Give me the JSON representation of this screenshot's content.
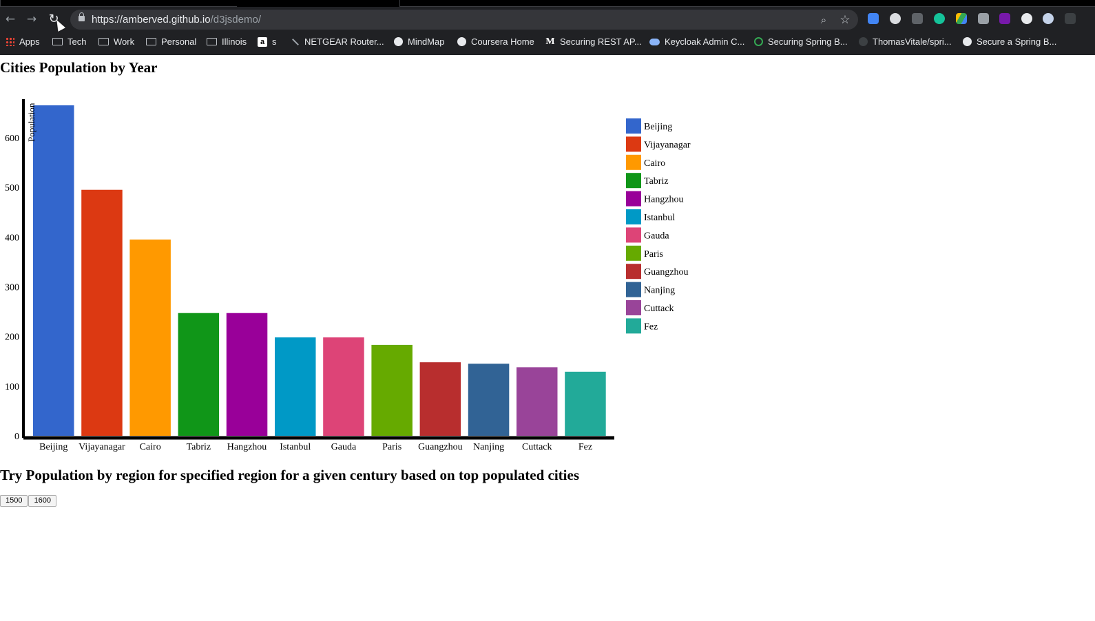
{
  "browser": {
    "url_host": "https://amberved.github.io",
    "url_path": "/d3jsdemo/",
    "bookmarks": [
      {
        "label": "Apps",
        "icon": "apps-grid-icon"
      },
      {
        "label": "Tech",
        "icon": "folder-icon"
      },
      {
        "label": "Work",
        "icon": "folder-icon"
      },
      {
        "label": "Personal",
        "icon": "folder-icon"
      },
      {
        "label": "Illinois",
        "icon": "folder-icon"
      },
      {
        "label": "s",
        "icon": "amazon-icon"
      },
      {
        "label": "NETGEAR Router...",
        "icon": "netgear-icon"
      },
      {
        "label": "MindMap",
        "icon": "globe-icon"
      },
      {
        "label": "Coursera Home",
        "icon": "globe-icon"
      },
      {
        "label": "Securing REST AP...",
        "icon": "medium-icon"
      },
      {
        "label": "Keycloak Admin C...",
        "icon": "cloud-icon"
      },
      {
        "label": "Securing Spring B...",
        "icon": "spring-icon"
      },
      {
        "label": "ThomasVitale/spri...",
        "icon": "github-icon"
      },
      {
        "label": "Secure a Spring B...",
        "icon": "globe-icon"
      }
    ]
  },
  "page": {
    "title": "Cities Population by Year",
    "section_title": "Try Population by region for specified region for a given century based on top populated cities",
    "year_buttons": [
      "1500",
      "1600"
    ]
  },
  "chart_data": {
    "type": "bar",
    "title": "Cities Population by Year",
    "xlabel": "",
    "ylabel": "Population",
    "ylim": [
      0,
      665
    ],
    "yticks": [
      0,
      100,
      200,
      300,
      400,
      500,
      600
    ],
    "categories": [
      "Beijing",
      "Vijayanagar",
      "Cairo",
      "Tabriz",
      "Hangzhou",
      "Istanbul",
      "Gauda",
      "Paris",
      "Guangzhou",
      "Nanjing",
      "Cuttack",
      "Fez"
    ],
    "values": [
      665,
      495,
      395,
      247,
      247,
      198,
      198,
      183,
      148,
      145,
      138,
      129
    ],
    "colors": [
      "#3366cc",
      "#dc3912",
      "#ff9900",
      "#109618",
      "#990099",
      "#0099c6",
      "#dd4477",
      "#66aa00",
      "#b82e2e",
      "#316395",
      "#994499",
      "#22aa99"
    ],
    "legend_position": "right",
    "grid": false
  }
}
